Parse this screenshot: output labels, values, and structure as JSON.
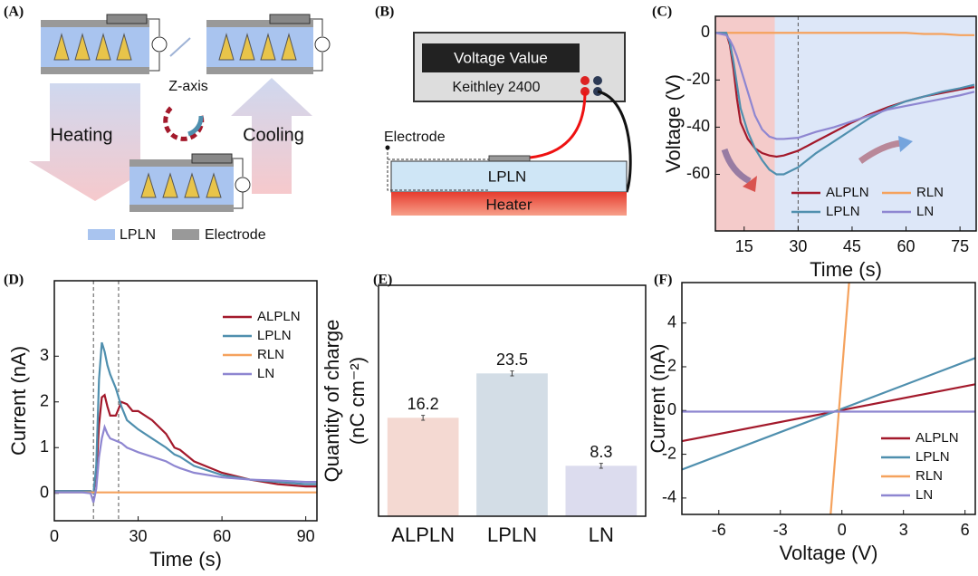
{
  "diagram_a": {
    "panel": "(A)",
    "axis": "Z-axis",
    "heating": "Heating",
    "cooling": "Cooling",
    "legend": [
      "LPLN",
      "Electrode"
    ]
  },
  "diagram_b": {
    "panel": "(B)",
    "meter": "Voltage Value",
    "instrument": "Keithley 2400",
    "electrode": "Electrode",
    "sample": "LPLN",
    "heater": "Heater"
  },
  "chart_data": [
    {
      "type": "line",
      "panel": "(C)",
      "xlabel": "Time (s)",
      "ylabel": "Voltage (V)",
      "x": [
        7,
        10,
        11,
        12,
        13,
        14,
        16,
        18,
        20,
        22,
        24,
        26,
        30,
        35,
        40,
        45,
        50,
        55,
        60,
        65,
        70,
        75,
        79
      ],
      "series": [
        {
          "name": "ALPLN",
          "color": "#a3192b",
          "values": [
            0,
            0,
            -5,
            -15,
            -28,
            -38,
            -45,
            -49,
            -51,
            -52,
            -52.5,
            -52,
            -50,
            -46,
            -42,
            -38,
            -34.5,
            -31.5,
            -29,
            -27,
            -25.5,
            -24,
            -23
          ]
        },
        {
          "name": "RLN",
          "color": "#f5a25d",
          "values": [
            0,
            0,
            0,
            0,
            0,
            0,
            0,
            0,
            0,
            0,
            0,
            0,
            0,
            0,
            0,
            0,
            0,
            0,
            0,
            -0.5,
            -0.5,
            -1,
            -1
          ]
        },
        {
          "name": "LPLN",
          "color": "#4f8fae",
          "values": [
            0,
            0,
            -4,
            -12,
            -22,
            -32,
            -42,
            -49,
            -54,
            -58,
            -60,
            -60,
            -57,
            -51,
            -46,
            -41,
            -36,
            -32,
            -29,
            -27,
            -25,
            -23.5,
            -22
          ]
        },
        {
          "name": "LN",
          "color": "#8e86d1",
          "values": [
            0,
            -1,
            -3,
            -6,
            -10,
            -15,
            -25,
            -35,
            -41,
            -44,
            -45,
            -45,
            -44.5,
            -42,
            -40,
            -37.5,
            -35,
            -32.5,
            -31,
            -29.5,
            -28,
            -26.5,
            -25
          ]
        }
      ],
      "xlim": [
        7,
        79.5
      ],
      "ylim": [
        -84,
        7
      ],
      "xticks": [
        15,
        30,
        45,
        60,
        75
      ],
      "yticks": [
        -60,
        -40,
        -20,
        0
      ],
      "vlines": [
        30
      ],
      "shaded_spans": [
        {
          "from": 7,
          "to": 23.5,
          "color": "#d9534f"
        },
        {
          "from": 23.5,
          "to": 79.5,
          "color": "#8fb0e8"
        }
      ],
      "legend": "lower right",
      "legend_columns": 2
    },
    {
      "type": "line",
      "panel": "(D)",
      "xlabel": "Time (s)",
      "ylabel": "Current (nA)",
      "x": [
        0,
        10,
        13,
        14,
        15,
        16,
        17,
        18,
        19,
        20,
        22,
        24,
        26,
        28,
        30,
        35,
        40,
        43,
        45,
        50,
        60,
        70,
        80,
        90,
        94
      ],
      "series": [
        {
          "name": "ALPLN",
          "color": "#a3192b",
          "values": [
            0.05,
            0.05,
            0.05,
            0,
            0.4,
            1.5,
            2.1,
            2.15,
            1.9,
            1.7,
            1.7,
            2.0,
            1.95,
            1.8,
            1.8,
            1.6,
            1.3,
            1.0,
            0.95,
            0.7,
            0.45,
            0.3,
            0.2,
            0.15,
            0.15
          ]
        },
        {
          "name": "LPLN",
          "color": "#4f8fae",
          "values": [
            0.05,
            0.05,
            0.05,
            0,
            0.6,
            2.5,
            3.3,
            3.1,
            2.8,
            2.6,
            2.3,
            1.9,
            1.6,
            1.5,
            1.4,
            1.2,
            1.0,
            0.85,
            0.8,
            0.6,
            0.4,
            0.3,
            0.25,
            0.2,
            0.2
          ]
        },
        {
          "name": "RLN",
          "color": "#f5a25d",
          "values": [
            0.02,
            0.02,
            0.02,
            0.02,
            0.02,
            0.02,
            0.02,
            0.02,
            0.02,
            0.02,
            0.02,
            0.02,
            0.02,
            0.02,
            0.02,
            0.02,
            0.02,
            0.02,
            0.02,
            0.02,
            0.02,
            0.02,
            0.02,
            0.02,
            0.02
          ]
        },
        {
          "name": "LN",
          "color": "#8e86d1",
          "values": [
            0.02,
            0.02,
            0,
            -0.2,
            0.1,
            0.8,
            1.2,
            1.45,
            1.3,
            1.2,
            1.15,
            1.1,
            1.0,
            0.95,
            0.9,
            0.8,
            0.7,
            0.6,
            0.55,
            0.45,
            0.35,
            0.3,
            0.28,
            0.25,
            0.25
          ]
        }
      ],
      "xlim": [
        0,
        94
      ],
      "ylim": [
        -0.6,
        4.65
      ],
      "xticks": [
        0,
        30,
        60,
        90
      ],
      "yticks": [
        0,
        1,
        2,
        3
      ],
      "vlines": [
        14,
        23
      ],
      "legend": "upper right",
      "legend_columns": 1
    },
    {
      "type": "bar",
      "panel": "(E)",
      "ylabel": "Quantity of charge",
      "ylabel_unit": "(nC cm⁻²)",
      "categories": [
        "ALPLN",
        "LPLN",
        "LN"
      ],
      "values": [
        16.2,
        23.5,
        8.3
      ],
      "errors": [
        0.4,
        0.4,
        0.4
      ],
      "colors": [
        "#f4d9d2",
        "#d3dde6",
        "#dcdcee"
      ],
      "ylim": [
        0,
        38
      ]
    },
    {
      "type": "line",
      "panel": "(F)",
      "xlabel": "Voltage (V)",
      "ylabel": "Current (nA)",
      "series": [
        {
          "name": "ALPLN",
          "color": "#a3192b",
          "x": [
            -7.8,
            6.5
          ],
          "values": [
            -1.4,
            1.2
          ]
        },
        {
          "name": "LPLN",
          "color": "#4f8fae",
          "x": [
            -7.8,
            6.5
          ],
          "values": [
            -2.7,
            2.4
          ]
        },
        {
          "name": "RLN",
          "color": "#f5a25d",
          "x": [
            -0.55,
            0.35
          ],
          "values": [
            -4.75,
            5.85
          ]
        },
        {
          "name": "LN",
          "color": "#8e86d1",
          "x": [
            -7.8,
            6.5
          ],
          "values": [
            -0.05,
            -0.05
          ]
        }
      ],
      "xlim": [
        -7.8,
        6.5
      ],
      "ylim": [
        -4.75,
        5.85
      ],
      "xticks": [
        -6,
        -3,
        0,
        3,
        6
      ],
      "yticks": [
        -4,
        -2,
        0,
        2,
        4
      ],
      "legend": "lower right",
      "legend_columns": 1
    }
  ]
}
